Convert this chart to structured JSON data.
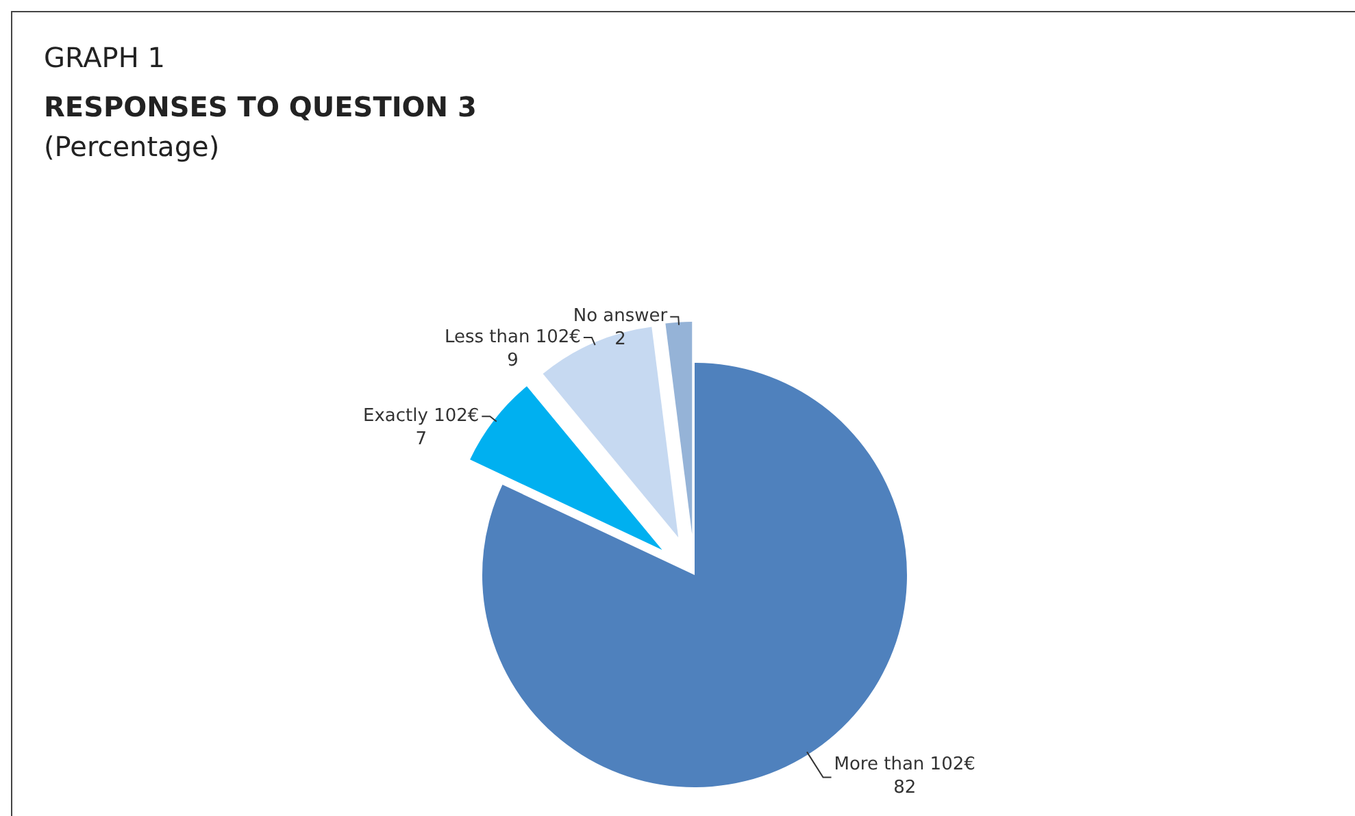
{
  "chart_data": {
    "type": "pie",
    "title": "RESPONSES TO QUESTION 3",
    "subtitle": "(Percentage)",
    "annotations": [
      "GRAPH 1"
    ],
    "categories": [
      "More than 102€",
      "Exactly 102€",
      "Less than 102€",
      "No answer"
    ],
    "values": [
      82,
      7,
      9,
      2
    ],
    "colors": [
      "#4f81bd",
      "#00b0f0",
      "#c6d9f1",
      "#95b3d7"
    ],
    "data_labels": true,
    "legend": false
  }
}
